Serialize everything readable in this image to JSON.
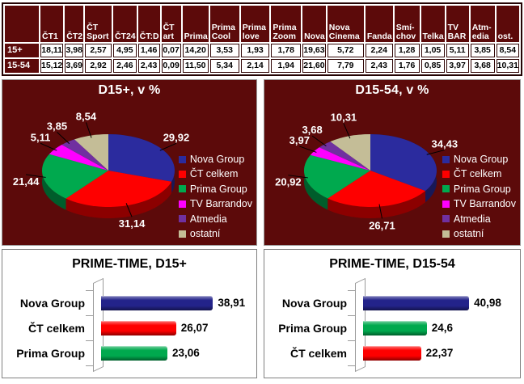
{
  "report": {
    "background_color": "#FFFFFF",
    "panel_color": "#5C0A0A"
  },
  "table": {
    "corner_label": "",
    "columns": [
      "ČT1",
      "ČT2",
      "ČT Sport",
      "ČT24",
      "ČT:D",
      "ČT art",
      "Prima",
      "Prima Cool",
      "Prima love",
      "Prima Zoom",
      "Nova",
      "Nova Cinema",
      "Fanda",
      "Smí-chov",
      "Telka",
      "TV BAR",
      "Atm-edia",
      "ost."
    ],
    "rows": [
      {
        "label": "15+",
        "values": [
          "18,11",
          "3,98",
          "2,57",
          "4,95",
          "1,46",
          "0,07",
          "14,20",
          "3,53",
          "1,93",
          "1,78",
          "19,63",
          "5,72",
          "2,24",
          "1,28",
          "1,05",
          "5,11",
          "3,85",
          "8,54"
        ]
      },
      {
        "label": "15-54",
        "values": [
          "15,12",
          "3,69",
          "2,92",
          "2,46",
          "2,43",
          "0,09",
          "11,50",
          "5,34",
          "2,14",
          "1,94",
          "21,60",
          "7,79",
          "2,43",
          "1,76",
          "0,85",
          "3,97",
          "3,68",
          "10,31"
        ]
      }
    ]
  },
  "legend": [
    {
      "label": "Nova Group",
      "color": "#2B2B9E"
    },
    {
      "label": "ČT celkem",
      "color": "#FE0000"
    },
    {
      "label": "Prima Group",
      "color": "#00A94E"
    },
    {
      "label": "TV Barrandov",
      "color": "#FF00FF"
    },
    {
      "label": "Atmedia",
      "color": "#7030A0"
    },
    {
      "label": "ostatní",
      "color": "#C4BD97"
    }
  ],
  "chart_data": [
    {
      "type": "pie",
      "effect": "3d",
      "title": "D15+, v %",
      "background": "#5C0A0A",
      "legend_position": "right",
      "labels": [
        "Nova Group",
        "ČT celkem",
        "Prima Group",
        "TV Barrandov",
        "Atmedia",
        "ostatní"
      ],
      "values": [
        29.92,
        31.14,
        21.44,
        5.11,
        3.85,
        8.54
      ],
      "value_labels": [
        "29,92",
        "31,14",
        "21,44",
        "5,11",
        "3,85",
        "8,54"
      ],
      "colors": [
        "#2B2B9E",
        "#FE0000",
        "#00A94E",
        "#FF00FF",
        "#7030A0",
        "#C4BD97"
      ]
    },
    {
      "type": "pie",
      "effect": "3d",
      "title": "D15-54, v %",
      "background": "#5C0A0A",
      "legend_position": "right",
      "labels": [
        "Nova Group",
        "ČT celkem",
        "Prima Group",
        "TV Barrandov",
        "Atmedia",
        "ostatní"
      ],
      "values": [
        34.43,
        26.71,
        20.92,
        3.97,
        3.68,
        10.31
      ],
      "value_labels": [
        "34,43",
        "26,71",
        "20,92",
        "3,97",
        "3,68",
        "10,31"
      ],
      "colors": [
        "#2B2B9E",
        "#FE0000",
        "#00A94E",
        "#FF00FF",
        "#7030A0",
        "#C4BD97"
      ]
    },
    {
      "type": "bar",
      "effect": "3d",
      "orientation": "horizontal",
      "title": "PRIME-TIME, D15+",
      "categories": [
        "Nova Group",
        "ČT celkem",
        "Prima Group"
      ],
      "values": [
        38.91,
        26.07,
        23.06
      ],
      "value_labels": [
        "38,91",
        "26,07",
        "23,06"
      ],
      "colors": [
        "#23238A",
        "#FE0000",
        "#00A94E"
      ],
      "xlim": [
        0,
        45
      ],
      "grid": false,
      "legend_position": "none"
    },
    {
      "type": "bar",
      "effect": "3d",
      "orientation": "horizontal",
      "title": "PRIME-TIME, D15-54",
      "categories": [
        "Nova Group",
        "Prima Group",
        "ČT celkem"
      ],
      "values": [
        40.98,
        24.6,
        22.37
      ],
      "value_labels": [
        "40,98",
        "24,6",
        "22,37"
      ],
      "colors": [
        "#23238A",
        "#00A94E",
        "#FE0000"
      ],
      "xlim": [
        0,
        50
      ],
      "grid": false,
      "legend_position": "none"
    }
  ]
}
